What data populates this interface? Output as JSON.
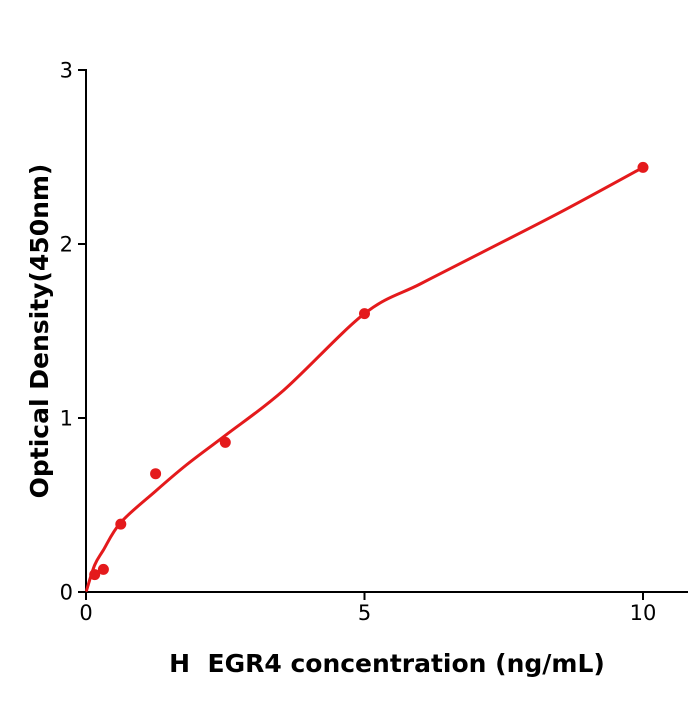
{
  "chart_data": {
    "type": "scatter",
    "title": "",
    "xlabel": "H  EGR4 concentration (ng/mL)",
    "ylabel": "Optical Density(450nm)",
    "x": [
      0.156,
      0.3125,
      0.625,
      1.25,
      2.5,
      5,
      10
    ],
    "y": [
      0.1,
      0.13,
      0.39,
      0.68,
      0.86,
      1.6,
      2.44
    ],
    "fit_curve_points": [
      [
        0.01,
        0.01
      ],
      [
        0.156,
        0.155
      ],
      [
        0.31,
        0.24
      ],
      [
        0.625,
        0.4
      ],
      [
        1.25,
        0.58
      ],
      [
        1.8,
        0.73
      ],
      [
        2.5,
        0.9
      ],
      [
        3.55,
        1.16
      ],
      [
        5.0,
        1.6
      ],
      [
        6.0,
        1.77
      ],
      [
        7.1,
        1.95
      ],
      [
        8.5,
        2.18
      ],
      [
        10,
        2.44
      ]
    ],
    "xticks": [
      0,
      5,
      10
    ],
    "yticks": [
      0,
      1,
      2,
      3
    ],
    "xlim": [
      0,
      10.8
    ],
    "ylim": [
      0,
      3
    ],
    "grid": false,
    "legend_position": "none",
    "point_color": "#e41a1c",
    "curve_color": "#e41a1c",
    "axis_color": "#000000",
    "background_color": "#ffffff",
    "marker_radius": 5.5,
    "curve_stroke_width": 3
  }
}
